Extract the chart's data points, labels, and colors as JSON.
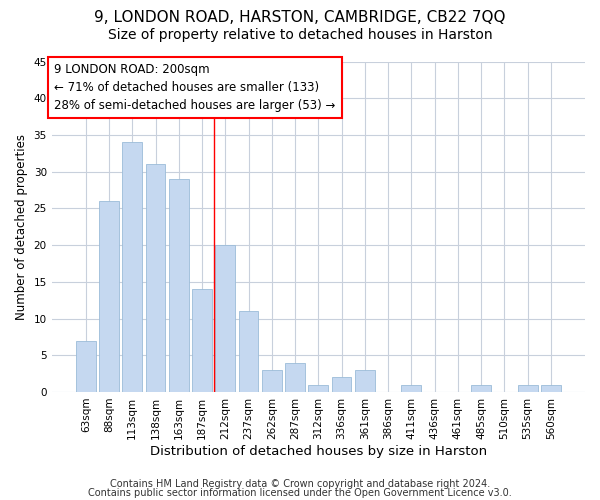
{
  "title1": "9, LONDON ROAD, HARSTON, CAMBRIDGE, CB22 7QQ",
  "title2": "Size of property relative to detached houses in Harston",
  "xlabel": "Distribution of detached houses by size in Harston",
  "ylabel": "Number of detached properties",
  "categories": [
    "63sqm",
    "88sqm",
    "113sqm",
    "138sqm",
    "163sqm",
    "187sqm",
    "212sqm",
    "237sqm",
    "262sqm",
    "287sqm",
    "312sqm",
    "336sqm",
    "361sqm",
    "386sqm",
    "411sqm",
    "436sqm",
    "461sqm",
    "485sqm",
    "510sqm",
    "535sqm",
    "560sqm"
  ],
  "values": [
    7,
    26,
    34,
    31,
    29,
    14,
    20,
    11,
    3,
    4,
    1,
    2,
    3,
    0,
    1,
    0,
    0,
    1,
    0,
    1,
    1
  ],
  "bar_color": "#c5d8f0",
  "bar_edge_color": "#9bbcd8",
  "bar_width": 0.85,
  "annotation_text": "9 LONDON ROAD: 200sqm\n← 71% of detached houses are smaller (133)\n28% of semi-detached houses are larger (53) →",
  "annotation_box_color": "white",
  "annotation_box_edge_color": "red",
  "vline_x": 5.5,
  "vline_color": "red",
  "ylim": [
    0,
    45
  ],
  "yticks": [
    0,
    5,
    10,
    15,
    20,
    25,
    30,
    35,
    40,
    45
  ],
  "footer1": "Contains HM Land Registry data © Crown copyright and database right 2024.",
  "footer2": "Contains public sector information licensed under the Open Government Licence v3.0.",
  "bg_color": "#ffffff",
  "grid_color": "#c8d0dc",
  "title1_fontsize": 11,
  "title2_fontsize": 10,
  "xlabel_fontsize": 9.5,
  "ylabel_fontsize": 8.5,
  "tick_fontsize": 7.5,
  "annotation_fontsize": 8.5,
  "footer_fontsize": 7
}
